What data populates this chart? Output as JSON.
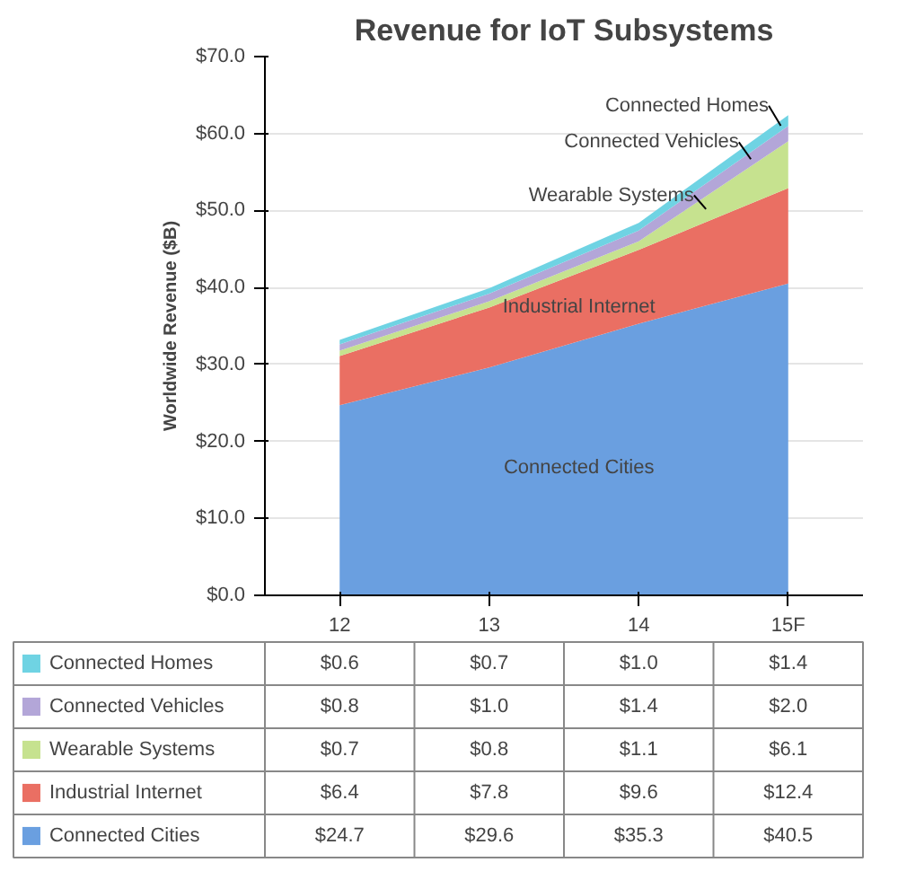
{
  "chart_data": {
    "type": "area",
    "stacked": true,
    "title": "Revenue for IoT Subsystems",
    "ylabel": "Worldwide Revenue ($B)",
    "categories": [
      "12",
      "13",
      "14",
      "15F"
    ],
    "ylim": [
      0,
      70
    ],
    "yticks": [
      {
        "value": 0,
        "label": "$0.0"
      },
      {
        "value": 10,
        "label": "$10.0"
      },
      {
        "value": 20,
        "label": "$20.0"
      },
      {
        "value": 30,
        "label": "$30.0"
      },
      {
        "value": 40,
        "label": "$40.0"
      },
      {
        "value": 50,
        "label": "$50.0"
      },
      {
        "value": 60,
        "label": "$60.0"
      },
      {
        "value": 70,
        "label": "$70.0"
      }
    ],
    "grid": "y",
    "legend": "bottom left",
    "series": [
      {
        "name": "Connected Cities",
        "color": "#6a9fe0",
        "values": [
          24.7,
          29.6,
          35.3,
          40.5
        ],
        "value_labels": [
          "$24.7",
          "$29.6",
          "$35.3",
          "$40.5"
        ]
      },
      {
        "name": "Industrial Internet",
        "color": "#ea6f63",
        "values": [
          6.4,
          7.8,
          9.6,
          12.4
        ],
        "value_labels": [
          "$6.4",
          "$7.8",
          "$9.6",
          "$12.4"
        ]
      },
      {
        "name": "Wearable Systems",
        "color": "#c6e28f",
        "values": [
          0.7,
          0.8,
          1.1,
          6.1
        ],
        "value_labels": [
          "$0.7",
          "$0.8",
          "$1.1",
          "$6.1"
        ]
      },
      {
        "name": "Connected Vehicles",
        "color": "#b3a6d8",
        "values": [
          0.8,
          1.0,
          1.4,
          2.0
        ],
        "value_labels": [
          "$0.8",
          "$1.0",
          "$1.4",
          "$2.0"
        ]
      },
      {
        "name": "Connected Homes",
        "color": "#6fd3e3",
        "values": [
          0.6,
          0.7,
          1.0,
          1.4
        ],
        "value_labels": [
          "$0.6",
          "$0.7",
          "$1.0",
          "$1.4"
        ]
      }
    ]
  }
}
